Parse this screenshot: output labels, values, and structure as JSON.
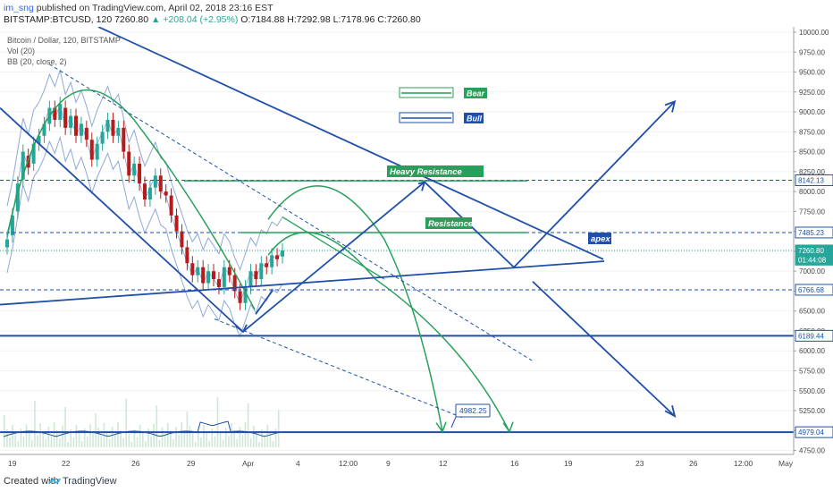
{
  "header": {
    "user": "im_sng",
    "published_text": "published on TradingView.com, April 02, 2018 23:16 EST",
    "symbol": "BITSTAMP:BTCUSD, 120",
    "last": "7260.80",
    "change": "▲ +208.04 (+2.95%)",
    "ohlc": "O:7184.88 H:7292.98 L:7178.96 C:7260.80"
  },
  "indicators": {
    "title": "Bitcoin / Dollar, 120, BITSTAMP",
    "vol": "Vol (20)",
    "bb": "BB (20, close, 2)"
  },
  "footer": {
    "created_with": "Created with",
    "brand": "TradingView"
  },
  "chart_data": {
    "type": "line",
    "title": "Bitcoin / Dollar, 120, BITSTAMP",
    "y_axis": {
      "min": 4600,
      "max": 10000,
      "ticks": [
        10000,
        9750,
        9500,
        9250,
        9000,
        8750,
        8500,
        8250,
        8000,
        7750,
        7500,
        7250,
        7000,
        6750,
        6500,
        6250,
        6000,
        5750,
        5500,
        5250,
        5000,
        4750
      ],
      "tick_labels": [
        "10000.00",
        "9750.00",
        "9500.00",
        "9250.00",
        "9000.00",
        "8750.00",
        "8500.00",
        "8250.00",
        "8000.00",
        "7750.00",
        "7500.00",
        "7250.00",
        "7000.00",
        "6750.00",
        "6500.00",
        "6250.00",
        "6000.00",
        "5750.00",
        "5500.00",
        "5250.00",
        "5000.00",
        "4750.00"
      ]
    },
    "x_axis": {
      "tick_labels": [
        "19",
        "22",
        "26",
        "29",
        "Apr",
        "4",
        "12:00",
        "9",
        "12",
        "16",
        "19",
        "23",
        "26",
        "12:00",
        "May"
      ]
    },
    "price_labels": [
      {
        "value": 8142.13,
        "label": "8142.13",
        "style": "dashed"
      },
      {
        "value": 7485.23,
        "label": "7485.23",
        "style": "dashed"
      },
      {
        "value": 7260.8,
        "label": "7260.80",
        "style": "last"
      },
      {
        "value": 7144.08,
        "label": "01:44:08",
        "style": "timer"
      },
      {
        "value": 6766.68,
        "label": "6766.68",
        "style": "dashed"
      },
      {
        "value": 6189.44,
        "label": "6189.44",
        "style": "solid"
      },
      {
        "value": 4979.04,
        "label": "4979.04",
        "style": "solid"
      }
    ],
    "legend": [
      {
        "name": "Bear",
        "color": "#26a05a"
      },
      {
        "name": "Bull",
        "color": "#1f4fa8"
      }
    ],
    "annotations": [
      {
        "text": "Heavy Resistance",
        "color": "#26a05a"
      },
      {
        "text": "Resistance",
        "color": "#26a05a"
      },
      {
        "text": "apex",
        "color": "#1f4fa8"
      },
      {
        "text": "4982.25",
        "color": "#1f4fa8"
      }
    ],
    "candles_close": [
      7400,
      7700,
      8100,
      8500,
      8300,
      8600,
      8700,
      8850,
      9050,
      8900,
      9100,
      8800,
      8950,
      8700,
      8850,
      8650,
      8400,
      8600,
      8750,
      8900,
      8700,
      8800,
      8500,
      8200,
      8350,
      8100,
      7900,
      8050,
      8200,
      8000,
      7950,
      7700,
      7500,
      7300,
      7100,
      6950,
      7050,
      6850,
      7000,
      6900,
      6800,
      7050,
      6950,
      6750,
      6600,
      6800,
      7000,
      6900,
      7100,
      7050,
      7200,
      7150,
      7260
    ],
    "candles_open": [
      7300,
      7450,
      7750,
      8150,
      8450,
      8350,
      8600,
      8700,
      8850,
      9050,
      8900,
      9050,
      8800,
      8950,
      8700,
      8800,
      8650,
      8400,
      8600,
      8750,
      8900,
      8700,
      8800,
      8500,
      8200,
      8350,
      8100,
      7900,
      8050,
      8200,
      8000,
      7950,
      7700,
      7500,
      7300,
      7100,
      6950,
      7050,
      6850,
      7000,
      6900,
      6800,
      7050,
      6950,
      6750,
      6600,
      6800,
      7000,
      6900,
      7100,
      7050,
      7200,
      7185
    ]
  }
}
